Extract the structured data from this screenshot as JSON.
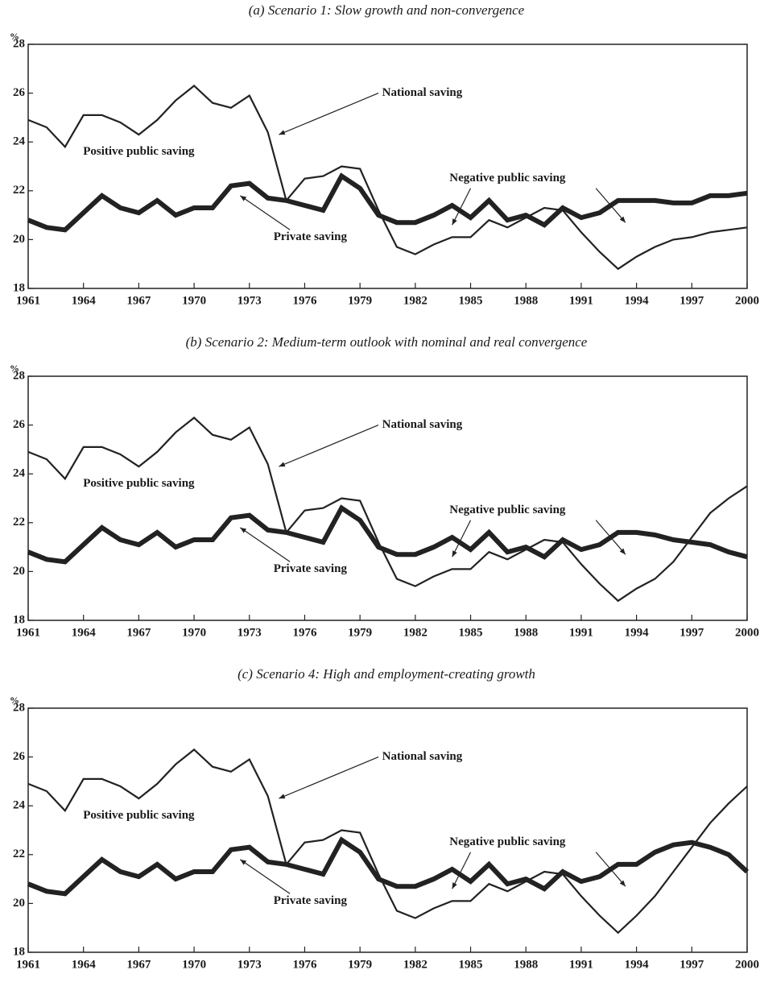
{
  "chart_data": [
    {
      "type": "line",
      "title": "(a) Scenario 1: Slow growth and non-convergence",
      "y_label": "%",
      "x": [
        1961,
        1962,
        1963,
        1964,
        1965,
        1966,
        1967,
        1968,
        1969,
        1970,
        1971,
        1972,
        1973,
        1974,
        1975,
        1976,
        1977,
        1978,
        1979,
        1980,
        1981,
        1982,
        1983,
        1984,
        1985,
        1986,
        1987,
        1988,
        1989,
        1990,
        1991,
        1992,
        1993,
        1994,
        1995,
        1996,
        1997,
        1998,
        1999,
        2000
      ],
      "xlim": [
        1961,
        2000
      ],
      "xticks": [
        1961,
        1964,
        1967,
        1970,
        1973,
        1976,
        1979,
        1982,
        1985,
        1988,
        1991,
        1994,
        1997,
        2000
      ],
      "ylim": [
        18,
        28
      ],
      "yticks": [
        18,
        20,
        22,
        24,
        26,
        28
      ],
      "annotations": [
        "National saving",
        "Positive public saving",
        "Private saving",
        "Negative public saving"
      ],
      "series": [
        {
          "name": "National saving",
          "color": "#222222",
          "values": [
            24.9,
            24.6,
            23.8,
            25.1,
            25.1,
            24.8,
            24.3,
            24.9,
            25.7,
            26.3,
            25.6,
            25.4,
            25.9,
            24.4,
            21.6,
            22.5,
            22.6,
            23.0,
            22.9,
            21.2,
            19.7,
            19.4,
            19.8,
            20.1,
            20.1,
            20.8,
            20.5,
            20.9,
            21.3,
            21.2,
            20.3,
            19.5,
            18.8,
            19.3,
            19.7,
            20.0,
            20.1,
            20.3,
            20.4,
            20.5
          ]
        },
        {
          "name": "Private saving",
          "color": "#222222",
          "values": [
            20.8,
            20.5,
            20.4,
            21.1,
            21.8,
            21.3,
            21.1,
            21.6,
            21.0,
            21.3,
            21.3,
            22.2,
            22.3,
            21.7,
            21.6,
            21.4,
            21.2,
            22.6,
            22.1,
            21.0,
            20.7,
            20.7,
            21.0,
            21.4,
            20.9,
            21.6,
            20.8,
            21.0,
            20.6,
            21.3,
            20.9,
            21.1,
            21.6,
            21.6,
            21.6,
            21.5,
            21.5,
            21.8,
            21.8,
            21.9
          ]
        }
      ]
    },
    {
      "type": "line",
      "title": "(b) Scenario 2: Medium-term outlook with nominal and real convergence",
      "y_label": "%",
      "x": [
        1961,
        1962,
        1963,
        1964,
        1965,
        1966,
        1967,
        1968,
        1969,
        1970,
        1971,
        1972,
        1973,
        1974,
        1975,
        1976,
        1977,
        1978,
        1979,
        1980,
        1981,
        1982,
        1983,
        1984,
        1985,
        1986,
        1987,
        1988,
        1989,
        1990,
        1991,
        1992,
        1993,
        1994,
        1995,
        1996,
        1997,
        1998,
        1999,
        2000
      ],
      "xlim": [
        1961,
        2000
      ],
      "xticks": [
        1961,
        1964,
        1967,
        1970,
        1973,
        1976,
        1979,
        1982,
        1985,
        1988,
        1991,
        1994,
        1997,
        2000
      ],
      "ylim": [
        18,
        28
      ],
      "yticks": [
        18,
        20,
        22,
        24,
        26,
        28
      ],
      "annotations": [
        "National saving",
        "Positive public saving",
        "Private saving",
        "Negative public saving"
      ],
      "series": [
        {
          "name": "National saving",
          "color": "#222222",
          "values": [
            24.9,
            24.6,
            23.8,
            25.1,
            25.1,
            24.8,
            24.3,
            24.9,
            25.7,
            26.3,
            25.6,
            25.4,
            25.9,
            24.4,
            21.6,
            22.5,
            22.6,
            23.0,
            22.9,
            21.2,
            19.7,
            19.4,
            19.8,
            20.1,
            20.1,
            20.8,
            20.5,
            20.9,
            21.3,
            21.2,
            20.3,
            19.5,
            18.8,
            19.3,
            19.7,
            20.4,
            21.4,
            22.4,
            23.0,
            23.5
          ]
        },
        {
          "name": "Private saving",
          "color": "#222222",
          "values": [
            20.8,
            20.5,
            20.4,
            21.1,
            21.8,
            21.3,
            21.1,
            21.6,
            21.0,
            21.3,
            21.3,
            22.2,
            22.3,
            21.7,
            21.6,
            21.4,
            21.2,
            22.6,
            22.1,
            21.0,
            20.7,
            20.7,
            21.0,
            21.4,
            20.9,
            21.6,
            20.8,
            21.0,
            20.6,
            21.3,
            20.9,
            21.1,
            21.6,
            21.6,
            21.5,
            21.3,
            21.2,
            21.1,
            20.8,
            20.6
          ]
        }
      ]
    },
    {
      "type": "line",
      "title": "(c) Scenario 4: High and employment-creating growth",
      "y_label": "%",
      "x": [
        1961,
        1962,
        1963,
        1964,
        1965,
        1966,
        1967,
        1968,
        1969,
        1970,
        1971,
        1972,
        1973,
        1974,
        1975,
        1976,
        1977,
        1978,
        1979,
        1980,
        1981,
        1982,
        1983,
        1984,
        1985,
        1986,
        1987,
        1988,
        1989,
        1990,
        1991,
        1992,
        1993,
        1994,
        1995,
        1996,
        1997,
        1998,
        1999,
        2000
      ],
      "xlim": [
        1961,
        2000
      ],
      "xticks": [
        1961,
        1964,
        1967,
        1970,
        1973,
        1976,
        1979,
        1982,
        1985,
        1988,
        1991,
        1994,
        1997,
        2000
      ],
      "ylim": [
        18,
        28
      ],
      "yticks": [
        18,
        20,
        22,
        24,
        26,
        28
      ],
      "annotations": [
        "National saving",
        "Positive public saving",
        "Private saving",
        "Negative public saving"
      ],
      "series": [
        {
          "name": "National saving",
          "color": "#222222",
          "values": [
            24.9,
            24.6,
            23.8,
            25.1,
            25.1,
            24.8,
            24.3,
            24.9,
            25.7,
            26.3,
            25.6,
            25.4,
            25.9,
            24.4,
            21.6,
            22.5,
            22.6,
            23.0,
            22.9,
            21.2,
            19.7,
            19.4,
            19.8,
            20.1,
            20.1,
            20.8,
            20.5,
            20.9,
            21.3,
            21.2,
            20.3,
            19.5,
            18.8,
            19.5,
            20.3,
            21.3,
            22.3,
            23.3,
            24.1,
            24.8
          ]
        },
        {
          "name": "Private saving",
          "color": "#222222",
          "values": [
            20.8,
            20.5,
            20.4,
            21.1,
            21.8,
            21.3,
            21.1,
            21.6,
            21.0,
            21.3,
            21.3,
            22.2,
            22.3,
            21.7,
            21.6,
            21.4,
            21.2,
            22.6,
            22.1,
            21.0,
            20.7,
            20.7,
            21.0,
            21.4,
            20.9,
            21.6,
            20.8,
            21.0,
            20.6,
            21.3,
            20.9,
            21.1,
            21.6,
            21.6,
            22.1,
            22.4,
            22.5,
            22.3,
            22.0,
            21.3
          ]
        }
      ]
    }
  ]
}
